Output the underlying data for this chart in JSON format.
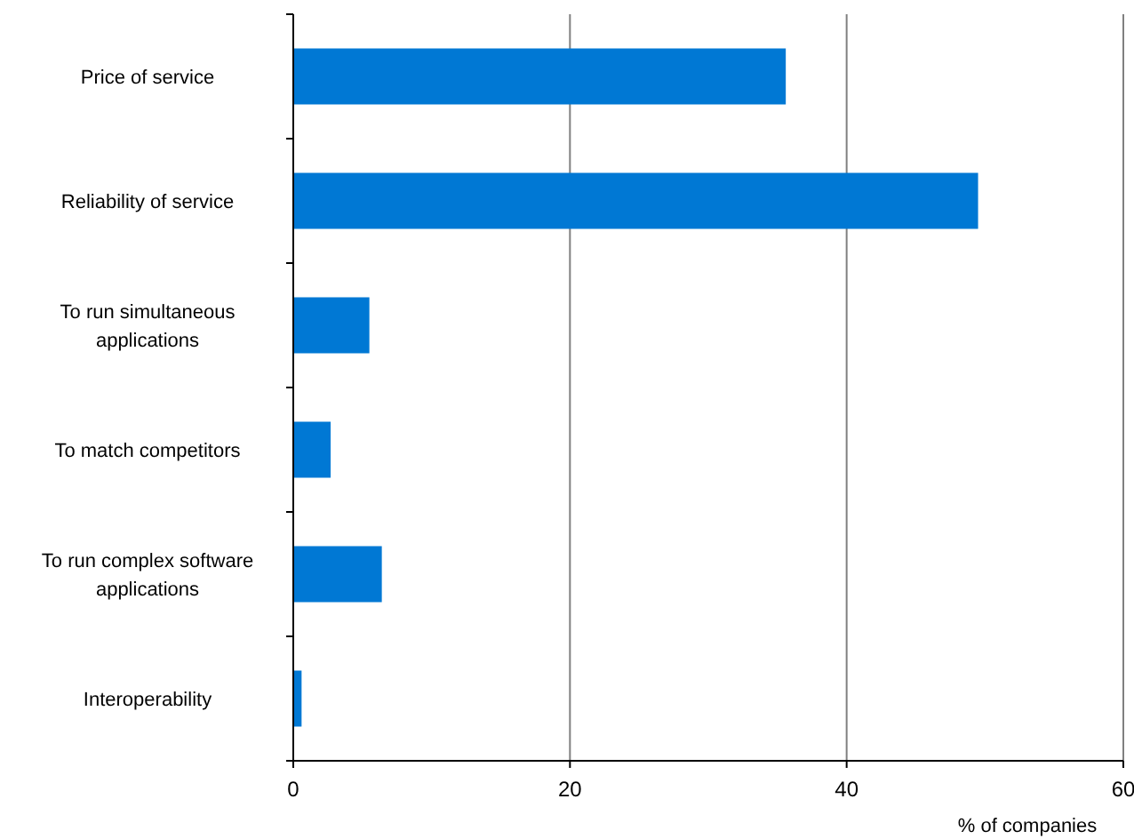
{
  "chart_data": {
    "type": "bar",
    "orientation": "horizontal",
    "categories": [
      "Price of service",
      "Reliability of service",
      "To run simultaneous applications",
      "To match competitors",
      "To run complex software applications",
      "Interoperability"
    ],
    "values": [
      35.6,
      49.5,
      5.5,
      2.7,
      6.4,
      0.6
    ],
    "color": "#0078d4",
    "xlim": [
      0,
      60
    ],
    "xticks": [
      0,
      20,
      40,
      60
    ],
    "xlabel": "% of companies",
    "grid": "x"
  }
}
